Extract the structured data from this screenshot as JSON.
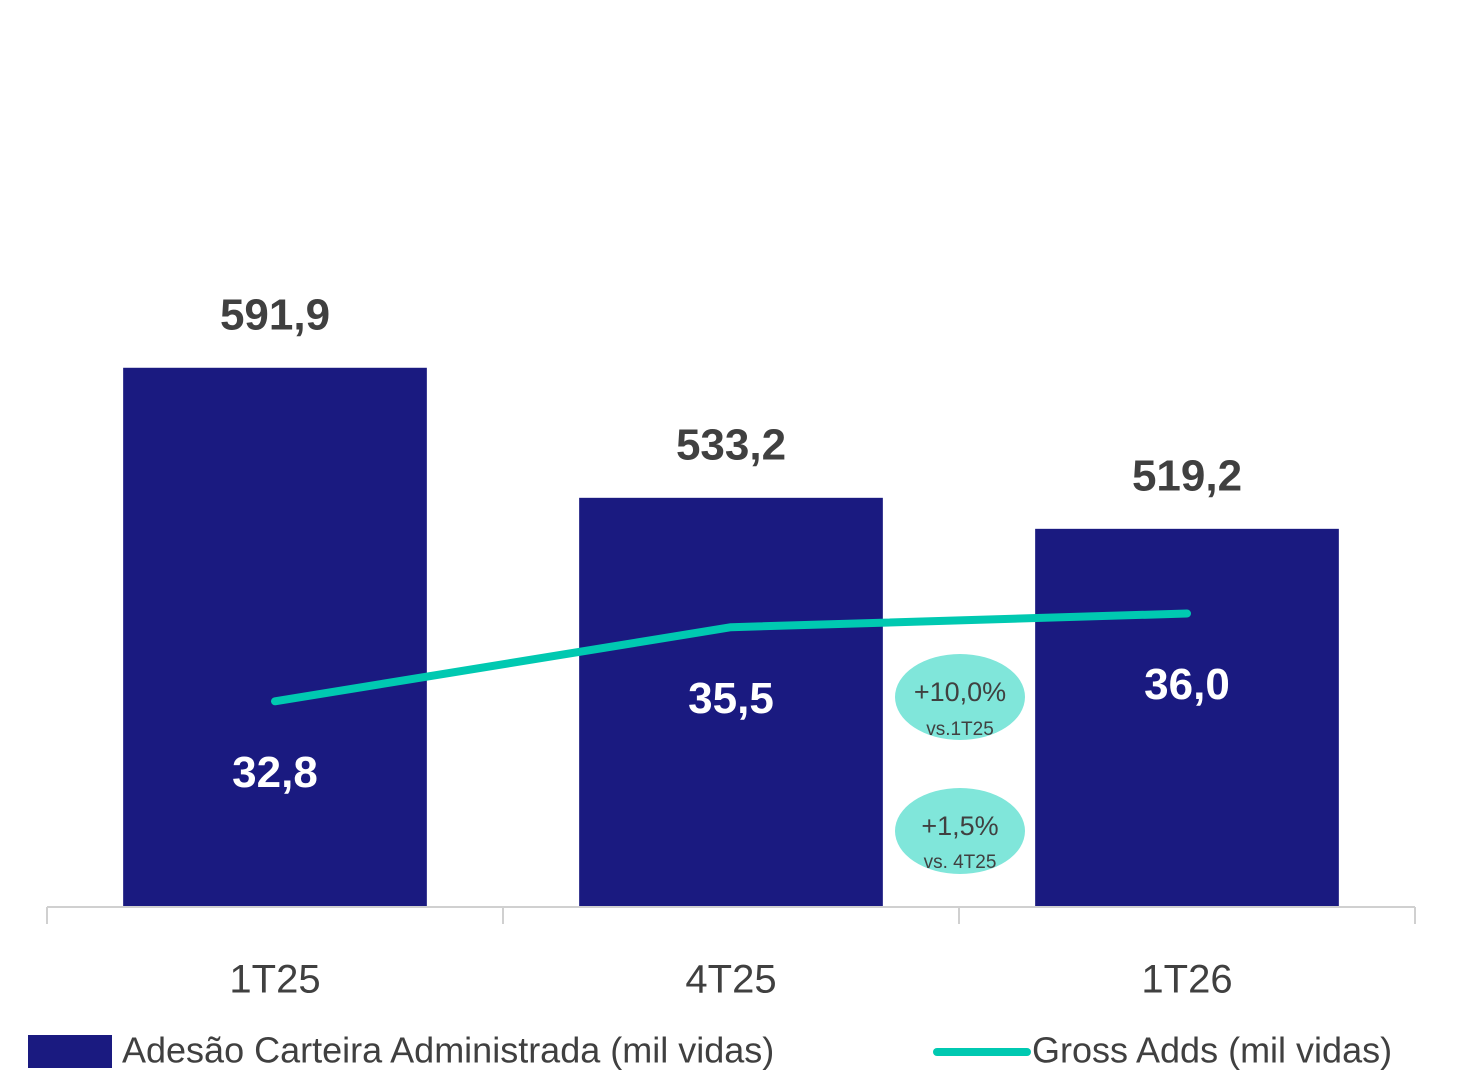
{
  "chart_data": {
    "type": "bar_line",
    "categories": [
      "1T25",
      "4T25",
      "1T26"
    ],
    "series": [
      {
        "name": "Adesão Carteira Administrada (mil vidas)",
        "type": "bar",
        "color": "#1a1a80",
        "values": [
          591.9,
          533.2,
          519.2
        ],
        "value_labels": [
          "591,9",
          "533,2",
          "519,2"
        ]
      },
      {
        "name": "Gross Adds (mil vidas)",
        "type": "line",
        "axis": "y2",
        "color": "#00c9b1",
        "values": [
          32.8,
          35.5,
          36.0
        ],
        "value_labels": [
          "32,8",
          "35,5",
          "36,0"
        ]
      }
    ],
    "ylim": [
      348.5,
      738.5
    ],
    "y2lim": [
      25.3,
      56.8
    ],
    "legend": "bottom",
    "annotations": [
      {
        "label": "+10,0%",
        "note": "vs.1T25"
      },
      {
        "label": "+1,5%",
        "note": "vs. 4T25"
      }
    ]
  }
}
